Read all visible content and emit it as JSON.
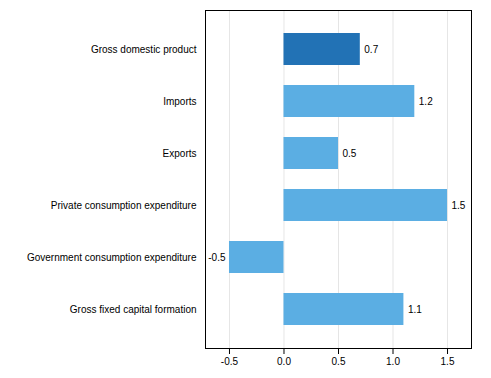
{
  "chart_data": {
    "type": "bar",
    "orientation": "horizontal",
    "categories": [
      "Gross fixed capital formation",
      "Government consumption expenditure",
      "Private consumption expenditure",
      "Exports",
      "Imports",
      "Gross domestic product"
    ],
    "values": [
      1.1,
      -0.5,
      1.5,
      0.5,
      1.2,
      0.7
    ],
    "colors": [
      "#5baee3",
      "#5baee3",
      "#5baee3",
      "#5baee3",
      "#5baee3",
      "#2272b5"
    ],
    "xlim": [
      -0.72,
      1.72
    ],
    "xticks": [
      -0.5,
      {
        "value": 0,
        "label": "0.0"
      },
      0.5,
      {
        "value": 1,
        "label": "1.0"
      },
      1.5
    ],
    "grid": true,
    "data_labels": true
  }
}
